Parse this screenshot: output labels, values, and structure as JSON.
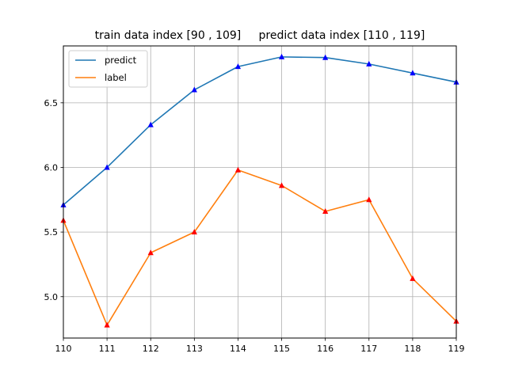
{
  "chart_data": {
    "type": "line",
    "title": "train data index [90 , 109]     predict data index [110 , 119]",
    "xlabel": "",
    "ylabel": "",
    "x": [
      110,
      111,
      112,
      113,
      114,
      115,
      116,
      117,
      118,
      119
    ],
    "xlim": [
      110,
      119
    ],
    "ylim": [
      4.68,
      6.94
    ],
    "x_ticks": [
      "110",
      "111",
      "112",
      "113",
      "114",
      "115",
      "116",
      "117",
      "118",
      "119"
    ],
    "y_ticks": [
      5.0,
      5.5,
      6.0,
      6.5
    ],
    "y_tick_labels": [
      "5.0",
      "5.5",
      "6.0",
      "6.5"
    ],
    "grid": true,
    "legend_position": "top-left",
    "series": [
      {
        "name": "predict",
        "color": "#1f77b4",
        "marker": "triangle",
        "marker_color": "#0000ff",
        "values": [
          5.71,
          6.0,
          6.33,
          6.6,
          6.78,
          6.855,
          6.85,
          6.8,
          6.73,
          6.66
        ]
      },
      {
        "name": "label",
        "color": "#ff7f0e",
        "marker": "triangle",
        "marker_color": "#ff0000",
        "values": [
          5.59,
          4.78,
          5.34,
          5.5,
          5.98,
          5.86,
          5.66,
          5.75,
          5.14,
          4.81
        ]
      }
    ]
  }
}
